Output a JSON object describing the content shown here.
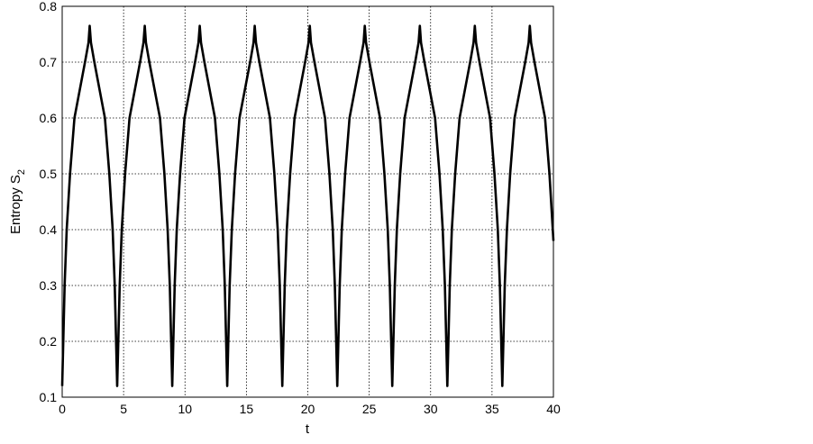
{
  "chart_data": {
    "type": "line",
    "title": "",
    "xlabel": "t",
    "ylabel": "Entropy S",
    "ylabel_subscript": "2",
    "xlim": [
      0,
      40
    ],
    "ylim": [
      0.1,
      0.8
    ],
    "xticks": [
      0,
      5,
      10,
      15,
      20,
      25,
      30,
      35,
      40
    ],
    "yticks": [
      0.1,
      0.2,
      0.3,
      0.4,
      0.5,
      0.6,
      0.7,
      0.8
    ],
    "grid": true,
    "line_color": "#000000",
    "series": [
      {
        "x": [
          0,
          0.2,
          0.37,
          0.64,
          1.0,
          1.86,
          2.14,
          2.24,
          2.34,
          2.62,
          3.48,
          3.84,
          4.11,
          4.28,
          4.48,
          4.68,
          4.85,
          5.12,
          5.48,
          6.34,
          6.62,
          6.72,
          6.82,
          7.1,
          7.96,
          8.32,
          8.59,
          8.76,
          8.96,
          9.16,
          9.33,
          9.6,
          9.96,
          10.82,
          11.1,
          11.2,
          11.3,
          11.58,
          12.44,
          12.8,
          13.07,
          13.24,
          13.44,
          13.64,
          13.81,
          14.08,
          14.44,
          15.3,
          15.58,
          15.68,
          15.78,
          16.06,
          16.92,
          17.28,
          17.55,
          17.72,
          17.92,
          18.12,
          18.29,
          18.56,
          18.92,
          19.78,
          20.06,
          20.16,
          20.26,
          20.54,
          21.4,
          21.76,
          22.03,
          22.2,
          22.4,
          22.6,
          22.77,
          23.04,
          23.4,
          24.26,
          24.54,
          24.64,
          24.74,
          25.02,
          25.88,
          26.24,
          26.51,
          26.68,
          26.88,
          27.08,
          27.25,
          27.52,
          27.88,
          28.74,
          29.02,
          29.12,
          29.22,
          29.5,
          30.36,
          30.72,
          30.99,
          31.16,
          31.36,
          31.56,
          31.73,
          32.0,
          32.36,
          33.22,
          33.5,
          33.6,
          33.7,
          33.98,
          34.84,
          35.2,
          35.47,
          35.64,
          35.84,
          36.04,
          36.21,
          36.48,
          36.84,
          37.7,
          37.98,
          38.08,
          38.18,
          38.46,
          39.32,
          39.68,
          39.95,
          40
        ],
        "y": [
          0.12,
          0.3,
          0.4,
          0.5,
          0.6,
          0.7,
          0.735,
          0.765,
          0.735,
          0.7,
          0.6,
          0.5,
          0.4,
          0.3,
          0.12,
          0.3,
          0.4,
          0.5,
          0.6,
          0.7,
          0.735,
          0.765,
          0.735,
          0.7,
          0.6,
          0.5,
          0.4,
          0.3,
          0.12,
          0.3,
          0.4,
          0.5,
          0.6,
          0.7,
          0.735,
          0.765,
          0.735,
          0.7,
          0.6,
          0.5,
          0.4,
          0.3,
          0.12,
          0.3,
          0.4,
          0.5,
          0.6,
          0.7,
          0.735,
          0.765,
          0.735,
          0.7,
          0.6,
          0.5,
          0.4,
          0.3,
          0.12,
          0.3,
          0.4,
          0.5,
          0.6,
          0.7,
          0.735,
          0.765,
          0.735,
          0.7,
          0.6,
          0.5,
          0.4,
          0.3,
          0.12,
          0.3,
          0.4,
          0.5,
          0.6,
          0.7,
          0.735,
          0.765,
          0.735,
          0.7,
          0.6,
          0.5,
          0.4,
          0.3,
          0.12,
          0.3,
          0.4,
          0.5,
          0.6,
          0.7,
          0.735,
          0.765,
          0.735,
          0.7,
          0.6,
          0.5,
          0.4,
          0.3,
          0.12,
          0.3,
          0.4,
          0.5,
          0.6,
          0.7,
          0.735,
          0.765,
          0.735,
          0.7,
          0.6,
          0.5,
          0.4,
          0.3,
          0.12,
          0.3,
          0.4,
          0.5,
          0.6,
          0.7,
          0.735,
          0.765,
          0.735,
          0.7,
          0.6,
          0.5,
          0.4,
          0.38
        ]
      }
    ]
  }
}
